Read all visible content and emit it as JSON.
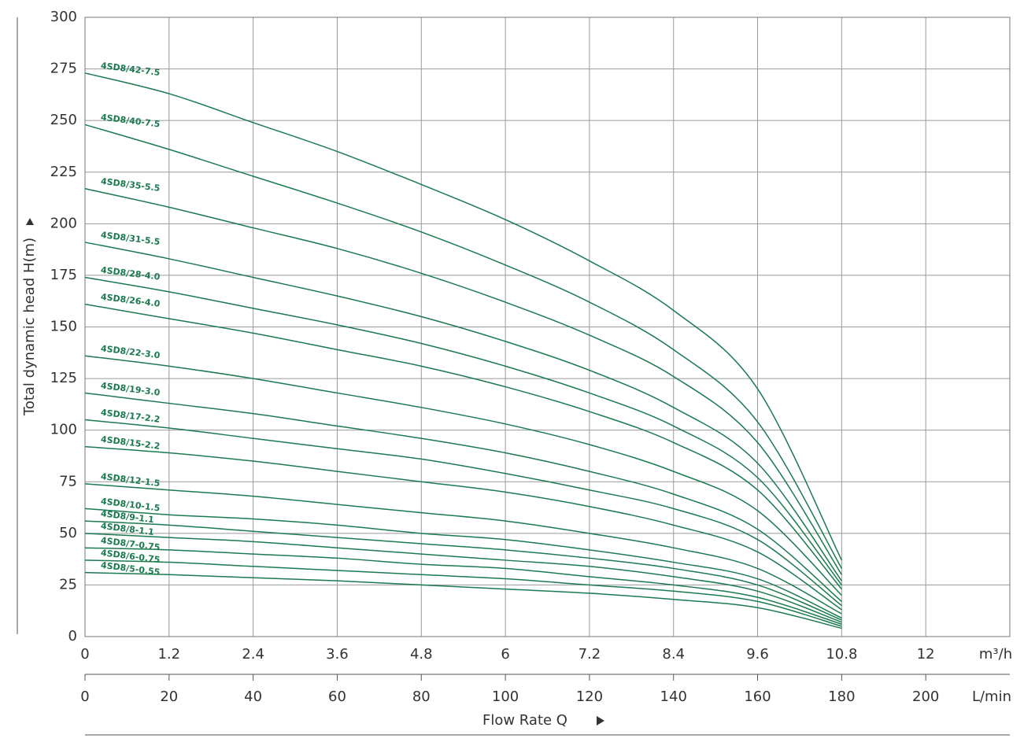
{
  "chart_data": {
    "type": "line",
    "ylabel": "Total dynamic head H(m)",
    "xlabel": "Flow Rate Q",
    "xunit": "m³/h",
    "x2unit": "L/min",
    "x": [
      0,
      1.2,
      2.4,
      3.6,
      4.8,
      6,
      7.2,
      8.4,
      9.6,
      10.8
    ],
    "xlim": [
      0,
      13.2
    ],
    "xticks": [
      0,
      1.2,
      2.4,
      3.6,
      4.8,
      6,
      7.2,
      8.4,
      9.6,
      10.8,
      12
    ],
    "x2lim": [
      0,
      220
    ],
    "x2ticks": [
      0,
      20,
      40,
      60,
      80,
      100,
      120,
      140,
      160,
      180,
      200
    ],
    "ylim": [
      0,
      300
    ],
    "yticks": [
      0,
      25,
      50,
      75,
      100,
      125,
      150,
      175,
      200,
      225,
      250,
      275,
      300
    ],
    "grid": true,
    "series": [
      {
        "name": "4SD8/42-7.5",
        "color": "#1b7a50",
        "values": [
          273,
          263,
          249,
          235,
          219,
          202,
          182,
          158,
          120,
          37
        ]
      },
      {
        "name": "4SD8/40-7.5",
        "color": "#1b7a50",
        "values": [
          248,
          236,
          223,
          210,
          196,
          180,
          162,
          139,
          104,
          33
        ]
      },
      {
        "name": "4SD8/35-5.5",
        "color": "#1b7a50",
        "values": [
          217,
          208,
          198,
          188,
          176,
          162,
          146,
          126,
          94,
          30
        ]
      },
      {
        "name": "4SD8/31-5.5",
        "color": "#1b7a50",
        "values": [
          191,
          183,
          174,
          165,
          155,
          143,
          129,
          111,
          84,
          27
        ]
      },
      {
        "name": "4SD8/28-4.0",
        "color": "#1b7a50",
        "values": [
          174,
          167,
          159,
          151,
          142,
          131,
          118,
          102,
          77,
          25
        ]
      },
      {
        "name": "4SD8/26-4.0",
        "color": "#1b7a50",
        "values": [
          161,
          154,
          147,
          139,
          131,
          121,
          109,
          94,
          71,
          23
        ]
      },
      {
        "name": "4SD8/22-3.0",
        "color": "#1b7a50",
        "values": [
          136,
          131,
          125,
          118,
          111,
          103,
          93,
          80,
          61,
          20
        ]
      },
      {
        "name": "4SD8/19-3.0",
        "color": "#1b7a50",
        "values": [
          118,
          113,
          108,
          102,
          96,
          89,
          80,
          69,
          52,
          17
        ]
      },
      {
        "name": "4SD8/17-2.2",
        "color": "#1b7a50",
        "values": [
          105,
          101,
          96,
          91,
          86,
          79,
          71,
          62,
          47,
          15
        ]
      },
      {
        "name": "4SD8/15-2.2",
        "color": "#1b7a50",
        "values": [
          92,
          89,
          85,
          80,
          75,
          70,
          63,
          54,
          41,
          13
        ]
      },
      {
        "name": "4SD8/12-1.5",
        "color": "#1b7a50",
        "values": [
          74,
          71,
          68,
          64,
          60,
          56,
          50,
          43,
          33,
          11
        ]
      },
      {
        "name": "4SD8/10-1.5",
        "color": "#1b7a50",
        "values": [
          62,
          59,
          57,
          54,
          50,
          47,
          42,
          36,
          28,
          9
        ]
      },
      {
        "name": "4SD8/9-1.1",
        "color": "#1b7a50",
        "values": [
          56,
          54,
          51,
          48,
          45,
          42,
          38,
          33,
          25,
          8
        ]
      },
      {
        "name": "4SD8/8-1.1",
        "color": "#1b7a50",
        "values": [
          50,
          48,
          46,
          43,
          40,
          37,
          34,
          29,
          22,
          7
        ]
      },
      {
        "name": "4SD8/7-0.75",
        "color": "#1b7a50",
        "values": [
          43,
          42,
          40,
          38,
          35,
          33,
          29,
          25,
          19,
          6
        ]
      },
      {
        "name": "4SD8/6-0.75",
        "color": "#1b7a50",
        "values": [
          37,
          36,
          34,
          32,
          30,
          28,
          25,
          22,
          17,
          5
        ]
      },
      {
        "name": "4SD8/5-0.55",
        "color": "#1b7a50",
        "values": [
          31,
          30,
          28.5,
          27,
          25,
          23,
          21,
          18,
          14,
          4
        ]
      }
    ]
  }
}
